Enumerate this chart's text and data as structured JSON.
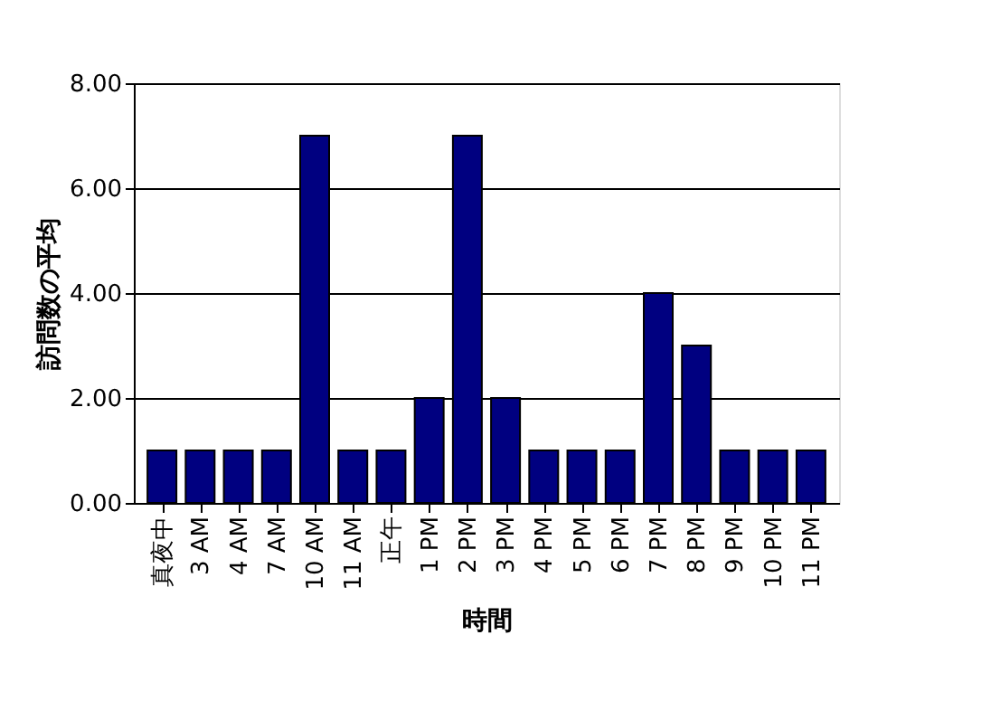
{
  "chart_data": {
    "type": "bar",
    "xlabel": "時間",
    "ylabel": "訪問数の平均",
    "categories": [
      "真夜中",
      "3 AM",
      "4 AM",
      "7 AM",
      "10 AM",
      "11 AM",
      "正午",
      "1 PM",
      "2 PM",
      "3 PM",
      "4 PM",
      "5 PM",
      "6 PM",
      "7 PM",
      "8 PM",
      "9 PM",
      "10 PM",
      "11 PM"
    ],
    "values": [
      1,
      1,
      1,
      1,
      7,
      1,
      1,
      2,
      7,
      2,
      1,
      1,
      1,
      4,
      3,
      1,
      1,
      1
    ],
    "color": "#000080",
    "ylim": [
      0,
      8
    ],
    "yticks": [
      {
        "value": 0,
        "label": "0.00"
      },
      {
        "value": 2,
        "label": "2.00"
      },
      {
        "value": 4,
        "label": "4.00"
      },
      {
        "value": 6,
        "label": "6.00"
      },
      {
        "value": 8,
        "label": "8.00"
      }
    ],
    "grid": "y"
  }
}
